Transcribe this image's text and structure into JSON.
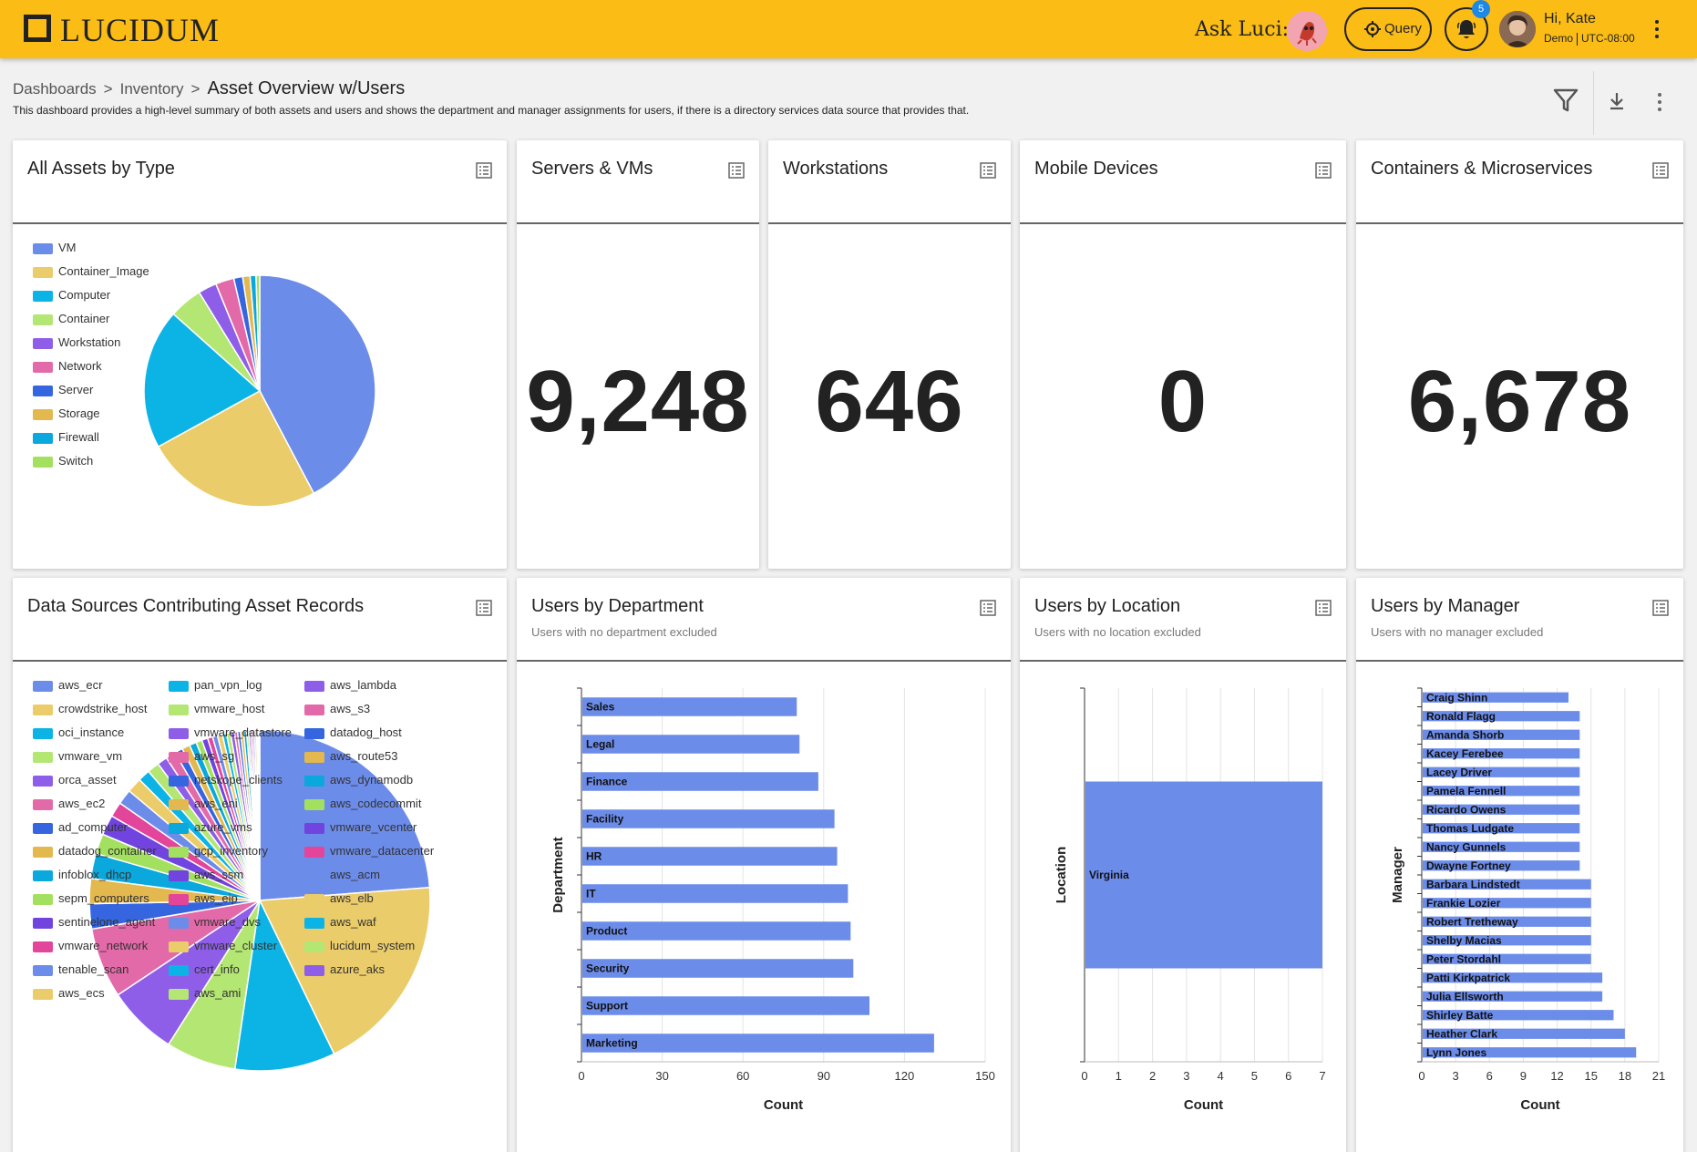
{
  "header": {
    "logo_text": "LUCIDUM",
    "ask_label": "Ask Luci:",
    "query_label": "Query",
    "notification_count": "5",
    "greeting": "Hi, Kate",
    "org": "Demo",
    "timezone": "UTC-08:00",
    "brand_color": "#fbbc15"
  },
  "breadcrumb": {
    "items": [
      "Dashboards",
      "Inventory"
    ],
    "separator": ">",
    "current": "Asset Overview w/Users"
  },
  "description": "This dashboard provides a high-level summary of both assets and users and shows the department and manager assignments for users, if there is a directory services data source that provides that.",
  "cards": {
    "all_assets": {
      "title": "All Assets by Type"
    },
    "servers": {
      "title": "Servers & VMs",
      "value": "9,248"
    },
    "workstations": {
      "title": "Workstations",
      "value": "646"
    },
    "mobile": {
      "title": "Mobile Devices",
      "value": "0"
    },
    "containers": {
      "title": "Containers & Microservices",
      "value": "6,678"
    },
    "data_sources": {
      "title": "Data Sources Contributing Asset Records"
    },
    "users_dept": {
      "title": "Users by Department",
      "subtitle": "Users with no department excluded"
    },
    "users_loc": {
      "title": "Users by Location",
      "subtitle": "Users with no location excluded"
    },
    "users_mgr": {
      "title": "Users by Manager",
      "subtitle": "Users with no manager excluded"
    }
  },
  "chart_data": [
    {
      "id": "assets_by_type",
      "type": "pie",
      "legend_position": "left",
      "labels": [
        "VM",
        "Container_Image",
        "Computer",
        "Container",
        "Workstation",
        "Network",
        "Server",
        "Storage",
        "Firewall",
        "Switch"
      ],
      "values": [
        41,
        24,
        19,
        4.5,
        2.5,
        2.5,
        1.2,
        1,
        0.8,
        0.5
      ],
      "colors": [
        "#6c8ce9",
        "#ebcc6a",
        "#0cb4e6",
        "#b3e673",
        "#8e5ee8",
        "#e36aa9",
        "#3566e0",
        "#e3b84f",
        "#0aa8dc",
        "#a4e05f"
      ]
    },
    {
      "id": "data_sources",
      "type": "pie",
      "legend_position": "left",
      "labels": [
        "aws_ecr",
        "crowdstrike_host",
        "oci_instance",
        "vmware_vm",
        "orca_asset",
        "aws_ec2",
        "ad_computer",
        "datadog_container",
        "infoblox_dhcp",
        "sepm_computers",
        "sentinelone_agent",
        "vmware_network",
        "tenable_scan",
        "aws_ecs",
        "pan_vpn_log",
        "vmware_host",
        "vmware_datastore",
        "aws_sg",
        "netskope_clients",
        "aws_eni",
        "azure_vms",
        "gcp_inventory",
        "aws_ssm",
        "aws_eip",
        "vmware_dvs",
        "vmware_cluster",
        "cert_info",
        "aws_ami",
        "aws_lambda",
        "aws_s3",
        "datadog_host",
        "aws_route53",
        "aws_dynamodb",
        "aws_codecommit",
        "vmware_vcenter",
        "vmware_datacenter",
        "aws_acm",
        "aws_elb",
        "aws_waf",
        "lucidum_system",
        "azure_aks"
      ],
      "values": [
        25,
        20,
        10,
        7,
        7,
        7,
        2.5,
        2.5,
        2.5,
        2,
        2,
        1.5,
        1.5,
        1.5,
        1.2,
        1.2,
        1,
        1,
        0.8,
        0.8,
        0.7,
        0.6,
        0.6,
        0.5,
        0.5,
        0.5,
        0.4,
        0.4,
        0.4,
        0.3,
        0.3,
        0.3,
        0.3,
        0.2,
        0.2,
        0.2,
        0.2,
        0.2,
        0.1,
        0.1,
        0.1
      ],
      "colors": [
        "#6c8ce9",
        "#ebcc6a",
        "#0cb4e6",
        "#b3e673",
        "#8e5ee8",
        "#e36aa9",
        "#3566e0",
        "#e3b84f",
        "#0aa8dc",
        "#a4e05f",
        "#7144e0",
        "#e2459a",
        "#6c8ce9",
        "#ebcc6a",
        "#0cb4e6",
        "#b3e673",
        "#8e5ee8",
        "#e36aa9",
        "#3566e0",
        "#e3b84f",
        "#0aa8dc",
        "#a4e05f",
        "#7144e0",
        "#e2459a",
        "#6c8ce9",
        "#ebcc6a",
        "#0cb4e6",
        "#b3e673",
        "#8e5ee8",
        "#e36aa9",
        "#3566e0",
        "#e3b84f",
        "#0aa8dc",
        "#a4e05f",
        "#7144e0",
        "#e2459a",
        "#6c8ce9",
        "#ebcc6a",
        "#0cb4e6",
        "#b3e673",
        "#8e5ee8"
      ]
    },
    {
      "id": "users_by_department",
      "type": "bar",
      "orientation": "horizontal",
      "xlabel": "Count",
      "ylabel": "Department",
      "categories": [
        "Sales",
        "Legal",
        "Finance",
        "Facility",
        "HR",
        "IT",
        "Product",
        "Security",
        "Support",
        "Marketing"
      ],
      "values": [
        80,
        81,
        88,
        94,
        95,
        99,
        100,
        101,
        107,
        131
      ],
      "xticks": [
        0,
        30,
        60,
        90,
        120,
        150
      ],
      "xlim": [
        0,
        150
      ],
      "color": "#6c8ce9"
    },
    {
      "id": "users_by_location",
      "type": "bar",
      "orientation": "horizontal",
      "xlabel": "Count",
      "ylabel": "Location",
      "categories": [
        "Virginia"
      ],
      "values": [
        7
      ],
      "xticks": [
        0,
        1,
        2,
        3,
        4,
        5,
        6,
        7
      ],
      "xlim": [
        0,
        7
      ],
      "color": "#6c8ce9"
    },
    {
      "id": "users_by_manager",
      "type": "bar",
      "orientation": "horizontal",
      "xlabel": "Count",
      "ylabel": "Manager",
      "categories": [
        "Craig Shinn",
        "Ronald Flagg",
        "Amanda Shorb",
        "Kacey Ferebee",
        "Lacey Driver",
        "Pamela Fennell",
        "Ricardo Owens",
        "Thomas Ludgate",
        "Nancy Gunnels",
        "Dwayne Fortney",
        "Barbara Lindstedt",
        "Frankie Lozier",
        "Robert Tretheway",
        "Shelby Macias",
        "Peter Stordahl",
        "Patti Kirkpatrick",
        "Julia Ellsworth",
        "Shirley Batte",
        "Heather Clark",
        "Lynn Jones"
      ],
      "values": [
        13,
        14,
        14,
        14,
        14,
        14,
        14,
        14,
        14,
        14,
        15,
        15,
        15,
        15,
        15,
        16,
        16,
        17,
        18,
        19
      ],
      "xticks": [
        0,
        3,
        6,
        9,
        12,
        15,
        18,
        21
      ],
      "xlim": [
        0,
        21
      ],
      "color": "#6c8ce9"
    }
  ]
}
